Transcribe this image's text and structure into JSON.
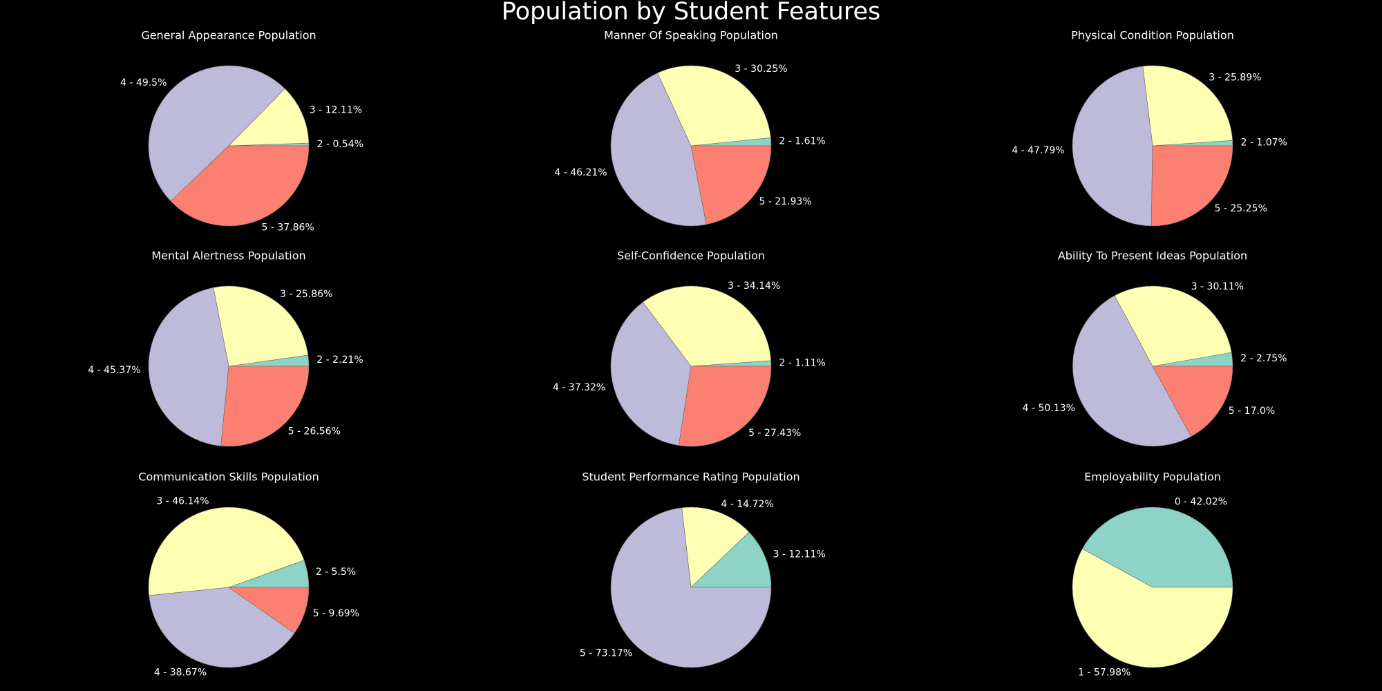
{
  "title": "Population by Student Features",
  "colors": {
    "2": "#8dd3c7",
    "3": "#ffffb3",
    "4": "#bebada",
    "5": "#fb8072",
    "0": "#8dd3c7",
    "1": "#ffffb3"
  },
  "chart_data": [
    {
      "type": "pie",
      "title": "General Appearance Population",
      "slices": [
        {
          "label": "2 - 0.54%",
          "value": 0.54,
          "key": "2"
        },
        {
          "label": "3 - 12.11%",
          "value": 12.11,
          "key": "3"
        },
        {
          "label": "4 - 49.5%",
          "value": 49.5,
          "key": "4"
        },
        {
          "label": "5 - 37.86%",
          "value": 37.86,
          "key": "5"
        }
      ]
    },
    {
      "type": "pie",
      "title": "Manner Of Speaking Population",
      "slices": [
        {
          "label": "2 - 1.61%",
          "value": 1.61,
          "key": "2"
        },
        {
          "label": "3 - 30.25%",
          "value": 30.25,
          "key": "3"
        },
        {
          "label": "4 - 46.21%",
          "value": 46.21,
          "key": "4"
        },
        {
          "label": "5 - 21.93%",
          "value": 21.93,
          "key": "5"
        }
      ]
    },
    {
      "type": "pie",
      "title": "Physical Condition Population",
      "slices": [
        {
          "label": "2 - 1.07%",
          "value": 1.07,
          "key": "2"
        },
        {
          "label": "3 - 25.89%",
          "value": 25.89,
          "key": "3"
        },
        {
          "label": "4 - 47.79%",
          "value": 47.79,
          "key": "4"
        },
        {
          "label": "5 - 25.25%",
          "value": 25.25,
          "key": "5"
        }
      ]
    },
    {
      "type": "pie",
      "title": "Mental Alertness Population",
      "slices": [
        {
          "label": "2 - 2.21%",
          "value": 2.21,
          "key": "2"
        },
        {
          "label": "3 - 25.86%",
          "value": 25.86,
          "key": "3"
        },
        {
          "label": "4 - 45.37%",
          "value": 45.37,
          "key": "4"
        },
        {
          "label": "5 - 26.56%",
          "value": 26.56,
          "key": "5"
        }
      ]
    },
    {
      "type": "pie",
      "title": "Self-Confidence Population",
      "slices": [
        {
          "label": "2 - 1.11%",
          "value": 1.11,
          "key": "2"
        },
        {
          "label": "3 - 34.14%",
          "value": 34.14,
          "key": "3"
        },
        {
          "label": "4 - 37.32%",
          "value": 37.32,
          "key": "4"
        },
        {
          "label": "5 - 27.43%",
          "value": 27.43,
          "key": "5"
        }
      ]
    },
    {
      "type": "pie",
      "title": "Ability To Present Ideas Population",
      "slices": [
        {
          "label": "2 - 2.75%",
          "value": 2.75,
          "key": "2"
        },
        {
          "label": "3 - 30.11%",
          "value": 30.11,
          "key": "3"
        },
        {
          "label": "4 - 50.13%",
          "value": 50.13,
          "key": "4"
        },
        {
          "label": "5 - 17.0%",
          "value": 17.0,
          "key": "5"
        }
      ]
    },
    {
      "type": "pie",
      "title": "Communication Skills Population",
      "slices": [
        {
          "label": "2 - 5.5%",
          "value": 5.5,
          "key": "2"
        },
        {
          "label": "3 - 46.14%",
          "value": 46.14,
          "key": "3"
        },
        {
          "label": "4 - 38.67%",
          "value": 38.67,
          "key": "4"
        },
        {
          "label": "5 - 9.69%",
          "value": 9.69,
          "key": "5"
        }
      ]
    },
    {
      "type": "pie",
      "title": "Student Performance Rating Population",
      "slices": [
        {
          "label": "3 - 12.11%",
          "value": 12.11,
          "key": "2"
        },
        {
          "label": "4 - 14.72%",
          "value": 14.72,
          "key": "3"
        },
        {
          "label": "5 - 73.17%",
          "value": 73.17,
          "key": "4"
        }
      ]
    },
    {
      "type": "pie",
      "title": "Employability Population",
      "slices": [
        {
          "label": "0 - 42.02%",
          "value": 42.02,
          "key": "0"
        },
        {
          "label": "1 - 57.98%",
          "value": 57.98,
          "key": "1"
        }
      ]
    }
  ]
}
